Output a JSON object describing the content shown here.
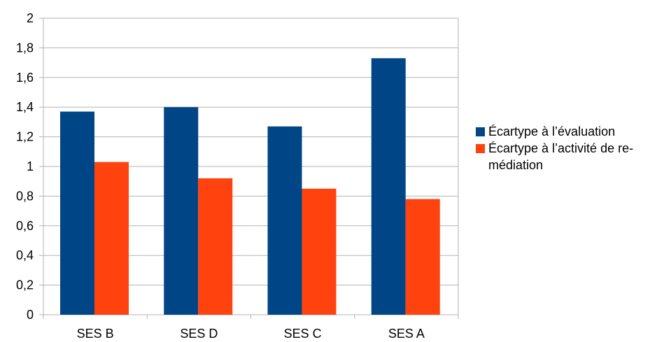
{
  "chart_data": {
    "type": "bar",
    "categories": [
      "SES B",
      "SES D",
      "SES C",
      "SES A"
    ],
    "series": [
      {
        "name": "Écartype à l’évaluation",
        "color": "#004586",
        "values": [
          1.37,
          1.4,
          1.27,
          1.73
        ]
      },
      {
        "name": "Écartype à l’activité de re-­médiation",
        "color": "#ff420e",
        "values": [
          1.03,
          0.92,
          0.85,
          0.78
        ]
      }
    ],
    "yticks": [
      "0",
      "0,2",
      "0,4",
      "0,6",
      "0,8",
      "1",
      "1,2",
      "1,4",
      "1,6",
      "1,8",
      "2"
    ],
    "ylim": [
      0,
      2
    ],
    "grid": true,
    "legend_position": "right"
  },
  "legend": {
    "items": [
      {
        "label": "Écartype à l’évaluation",
        "color": "#004586"
      },
      {
        "label": "Écartype à l’activité de re-médiation",
        "color": "#ff420e"
      }
    ]
  }
}
